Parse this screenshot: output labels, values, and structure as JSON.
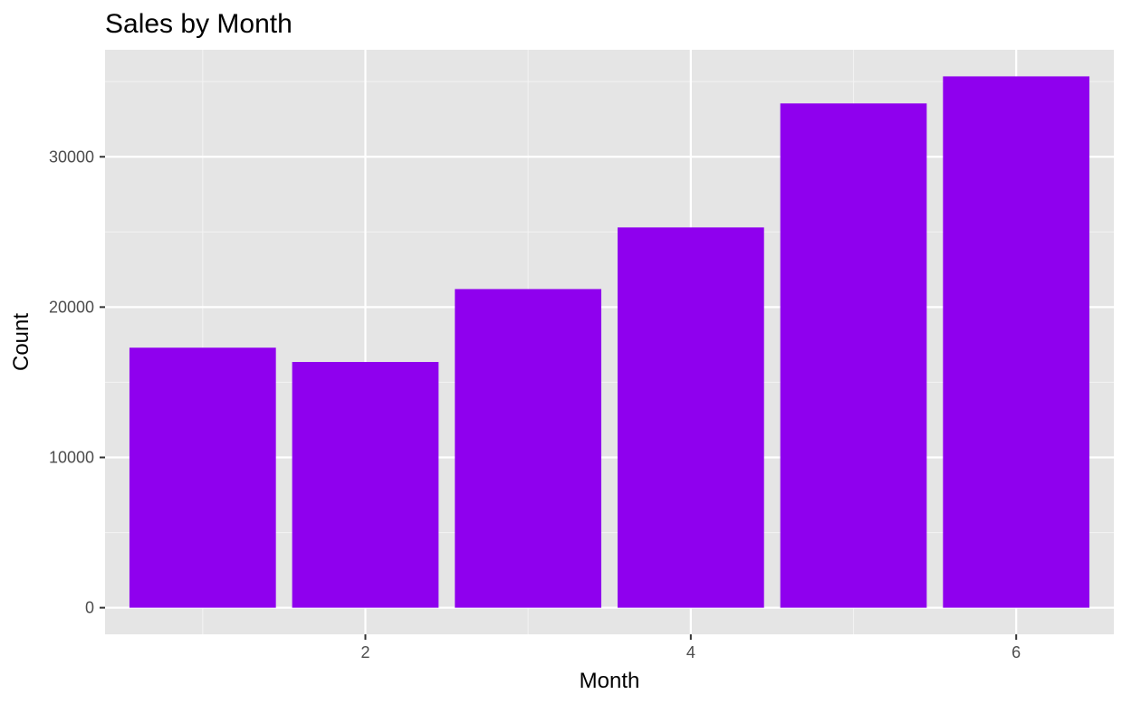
{
  "chart_data": {
    "type": "bar",
    "title": "Sales by Month",
    "xlabel": "Month",
    "ylabel": "Count",
    "x": [
      1,
      2,
      3,
      4,
      5,
      6
    ],
    "values": [
      17300,
      16350,
      21200,
      25300,
      33550,
      35350
    ],
    "xlim": [
      0.4,
      6.6
    ],
    "ylim": [
      -1770,
      37120
    ],
    "x_ticks": [
      2,
      4,
      6
    ],
    "x_tick_labels": [
      "2",
      "4",
      "6"
    ],
    "y_ticks": [
      0,
      10000,
      20000,
      30000
    ],
    "y_tick_labels": [
      "0",
      "10000",
      "20000",
      "30000"
    ],
    "x_minor_gridlines": [
      1,
      3,
      5
    ],
    "y_minor_gridlines": [
      5000,
      15000,
      25000,
      35000
    ],
    "grid": true,
    "legend": "none",
    "bar_width": 0.9
  },
  "colors": {
    "bar": "#8f00ee",
    "panel_background": "#e5e5e5",
    "grid_major": "#ffffff",
    "grid_minor": "#f2f2f2",
    "tick_text": "#4d4d4d",
    "tick_mark": "#333333"
  }
}
